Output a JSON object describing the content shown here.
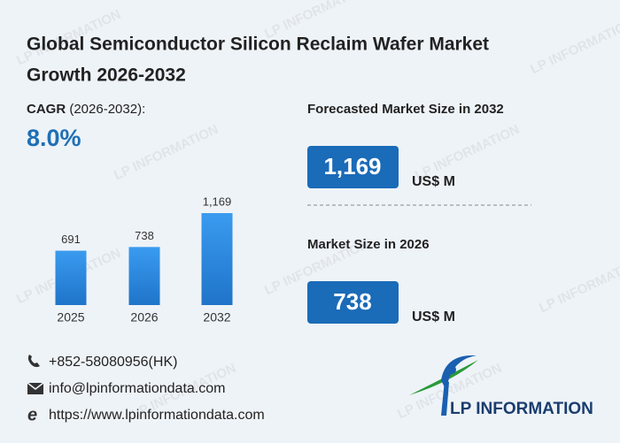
{
  "title_lines": [
    "Global Semiconductor Silicon Reclaim Wafer Market",
    "Growth 2026-2032"
  ],
  "cagr": {
    "label": "CAGR",
    "period": "(2026-2032):",
    "value": "8.0%"
  },
  "chart_data": {
    "type": "bar",
    "categories": [
      "2025",
      "2026",
      "2032"
    ],
    "values": [
      691,
      738,
      1169
    ],
    "value_labels": [
      "691",
      "738",
      "1,169"
    ],
    "color": "#2f8fe6"
  },
  "highlights": [
    {
      "label": "Forecasted Market Size in 2032",
      "value": "1,169",
      "unit": "US$ M"
    },
    {
      "label": "Market Size in 2026",
      "value": "738",
      "unit": "US$ M"
    }
  ],
  "contacts": {
    "phone": "+852-58080956(HK)",
    "email": "info@lpinformationdata.com",
    "website": "https://www.lpinformationdata.com"
  },
  "logo": "LP INFORMATION",
  "watermark": "LP INFORMATION"
}
